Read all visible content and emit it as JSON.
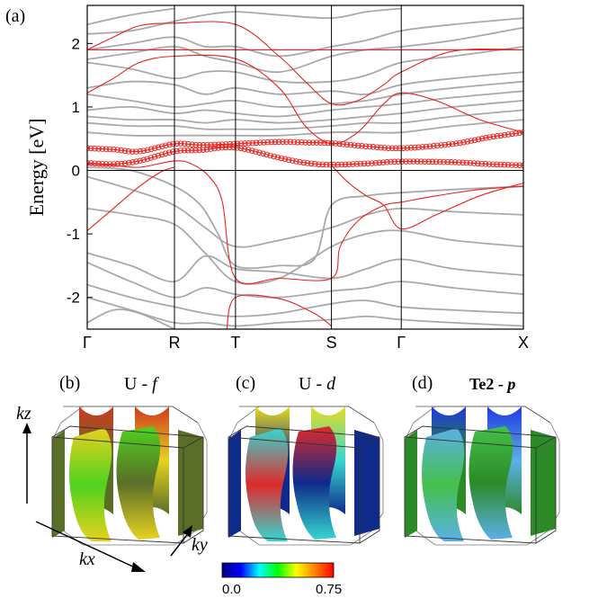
{
  "panel_labels": {
    "a": "(a)",
    "b": "(b)",
    "c": "(c)",
    "d": "(d)"
  },
  "chart_data": {
    "type": "line",
    "title": "",
    "ylabel": "Energy [eV]",
    "xlabel": "",
    "ylim": [
      -2.5,
      2.6
    ],
    "xlim": [
      0,
      5
    ],
    "k_points": [
      {
        "label": "Γ",
        "x": 0
      },
      {
        "label": "R",
        "x": 1
      },
      {
        "label": "T",
        "x": 1.7
      },
      {
        "label": "S",
        "x": 2.8
      },
      {
        "label": "Γ",
        "x": 3.6
      },
      {
        "label": "X",
        "x": 5
      }
    ],
    "yticks": [
      {
        "label": "2",
        "y": 2
      },
      {
        "label": "1",
        "y": 1
      },
      {
        "label": "0",
        "y": 0
      },
      {
        "label": "-1",
        "y": -1
      },
      {
        "label": "-2",
        "y": -2
      }
    ],
    "fermi_level": 0,
    "colors": {
      "highlight": "#e8221e",
      "other": "#a9a9a9",
      "axes": "#000000"
    },
    "gray_bands": [
      [
        [
          0,
          2.3
        ],
        [
          0.5,
          2.45
        ],
        [
          1,
          2.55
        ]
      ],
      [
        [
          0,
          2.15
        ],
        [
          0.5,
          2.2
        ],
        [
          1,
          2.35
        ],
        [
          1.35,
          2.45
        ],
        [
          1.7,
          2.5
        ],
        [
          2.2,
          2.45
        ],
        [
          2.8,
          2.4
        ],
        [
          3.2,
          2.5
        ],
        [
          3.6,
          2.55
        ]
      ],
      [
        [
          0,
          1.9
        ],
        [
          0.5,
          2.0
        ],
        [
          1,
          2.1
        ],
        [
          1.35,
          1.95
        ],
        [
          1.7,
          1.95
        ],
        [
          2.2,
          1.8
        ],
        [
          2.8,
          1.95
        ],
        [
          3.2,
          2.05
        ],
        [
          3.6,
          2.2
        ],
        [
          4.2,
          2.3
        ],
        [
          5,
          2.4
        ]
      ],
      [
        [
          0,
          1.75
        ],
        [
          0.5,
          1.85
        ],
        [
          1,
          1.95
        ],
        [
          1.35,
          1.8
        ],
        [
          1.7,
          1.7
        ],
        [
          2.2,
          1.55
        ],
        [
          2.8,
          1.8
        ],
        [
          3.2,
          1.9
        ],
        [
          3.6,
          1.95
        ],
        [
          4.2,
          2.05
        ],
        [
          5,
          2.25
        ]
      ],
      [
        [
          0,
          1.7
        ],
        [
          0.5,
          1.6
        ],
        [
          1,
          1.45
        ],
        [
          1.35,
          1.55
        ],
        [
          1.7,
          1.55
        ],
        [
          2.2,
          1.4
        ],
        [
          2.8,
          1.4
        ],
        [
          3.2,
          1.5
        ],
        [
          3.6,
          1.7
        ],
        [
          4.2,
          1.8
        ],
        [
          5,
          1.95
        ]
      ],
      [
        [
          0,
          1.3
        ],
        [
          0.5,
          1.4
        ],
        [
          1,
          1.35
        ],
        [
          1.35,
          1.2
        ],
        [
          1.7,
          1.3
        ],
        [
          2.2,
          1.2
        ],
        [
          2.8,
          1.25
        ],
        [
          3.2,
          1.2
        ],
        [
          3.6,
          1.35
        ],
        [
          4.2,
          1.45
        ],
        [
          5,
          1.55
        ]
      ],
      [
        [
          0,
          1.2
        ],
        [
          0.5,
          1.1
        ],
        [
          1,
          1.0
        ],
        [
          1.35,
          1.05
        ],
        [
          1.7,
          1.1
        ],
        [
          2.2,
          1.0
        ],
        [
          2.8,
          1.05
        ],
        [
          3.2,
          1.1
        ],
        [
          3.6,
          1.2
        ],
        [
          4.2,
          1.3
        ],
        [
          5,
          1.4
        ]
      ],
      [
        [
          0,
          0.95
        ],
        [
          0.5,
          1.0
        ],
        [
          1,
          0.9
        ],
        [
          1.35,
          0.95
        ],
        [
          1.7,
          0.9
        ],
        [
          2.2,
          0.85
        ],
        [
          2.8,
          0.95
        ],
        [
          3.2,
          1.0
        ],
        [
          3.6,
          1.05
        ],
        [
          4.2,
          1.15
        ],
        [
          5,
          1.25
        ]
      ],
      [
        [
          0,
          0.85
        ],
        [
          0.5,
          0.8
        ],
        [
          1,
          0.8
        ],
        [
          1.35,
          0.75
        ],
        [
          1.7,
          0.8
        ],
        [
          2.2,
          0.75
        ],
        [
          2.8,
          0.8
        ],
        [
          3.2,
          0.85
        ],
        [
          3.6,
          0.9
        ],
        [
          4.2,
          1.0
        ],
        [
          5,
          1.1
        ]
      ],
      [
        [
          0,
          0.75
        ],
        [
          0.5,
          0.7
        ],
        [
          1,
          0.7
        ],
        [
          1.35,
          0.65
        ],
        [
          1.7,
          0.65
        ],
        [
          2.2,
          0.65
        ],
        [
          2.8,
          0.7
        ],
        [
          3.2,
          0.75
        ],
        [
          3.6,
          0.75
        ],
        [
          4.2,
          0.85
        ],
        [
          5,
          0.95
        ]
      ],
      [
        [
          0,
          0.6
        ],
        [
          0.5,
          0.55
        ],
        [
          1,
          0.55
        ],
        [
          1.35,
          0.55
        ],
        [
          1.7,
          0.55
        ],
        [
          2.2,
          0.55
        ],
        [
          2.8,
          0.6
        ],
        [
          3.2,
          0.6
        ],
        [
          3.6,
          0.6
        ],
        [
          4.2,
          0.7
        ],
        [
          5,
          0.8
        ]
      ],
      [
        [
          0,
          0.05
        ],
        [
          0.5,
          0.0
        ],
        [
          1,
          -0.25
        ],
        [
          1.3,
          -0.55
        ],
        [
          1.5,
          -1.0
        ],
        [
          1.7,
          -1.5
        ],
        [
          2.2,
          -1.5
        ],
        [
          2.6,
          -1.4
        ],
        [
          2.8,
          -0.55
        ],
        [
          3.2,
          -0.4
        ],
        [
          3.6,
          -0.35
        ],
        [
          4.2,
          -0.3
        ],
        [
          5,
          -0.25
        ]
      ],
      [
        [
          0,
          -0.1
        ],
        [
          0.5,
          -0.3
        ],
        [
          1,
          -0.55
        ],
        [
          1.35,
          -0.9
        ],
        [
          1.7,
          -1.2
        ],
        [
          2.2,
          -1.1
        ],
        [
          2.8,
          -0.9
        ],
        [
          3.2,
          -0.7
        ],
        [
          3.6,
          -0.6
        ],
        [
          4.2,
          -0.65
        ],
        [
          5,
          -0.7
        ]
      ],
      [
        [
          0,
          -0.6
        ],
        [
          0.5,
          -0.7
        ],
        [
          1,
          -0.85
        ],
        [
          1.35,
          -1.3
        ],
        [
          1.7,
          -1.75
        ],
        [
          2.2,
          -1.7
        ],
        [
          2.8,
          -1.2
        ],
        [
          3.2,
          -1.0
        ],
        [
          3.6,
          -0.95
        ],
        [
          4.2,
          -1.1
        ],
        [
          5,
          -1.2
        ]
      ],
      [
        [
          0,
          -1.3
        ],
        [
          0.5,
          -1.5
        ],
        [
          1,
          -1.75
        ],
        [
          1.35,
          -1.35
        ],
        [
          1.7,
          -1.55
        ],
        [
          2.2,
          -1.6
        ],
        [
          2.8,
          -1.7
        ],
        [
          3.2,
          -1.55
        ],
        [
          3.6,
          -1.4
        ],
        [
          4.2,
          -1.55
        ],
        [
          5,
          -1.65
        ]
      ],
      [
        [
          0,
          -1.45
        ],
        [
          0.5,
          -1.75
        ],
        [
          1,
          -2.0
        ],
        [
          1.35,
          -1.85
        ],
        [
          1.7,
          -1.95
        ],
        [
          2.2,
          -2.0
        ],
        [
          2.8,
          -1.9
        ],
        [
          3.2,
          -1.85
        ],
        [
          3.6,
          -1.75
        ],
        [
          4.2,
          -1.85
        ],
        [
          5,
          -1.95
        ]
      ],
      [
        [
          0,
          -1.8
        ],
        [
          0.5,
          -2.0
        ],
        [
          1,
          -2.15
        ],
        [
          1.35,
          -2.25
        ],
        [
          1.7,
          -2.3
        ],
        [
          2.2,
          -2.25
        ],
        [
          2.8,
          -2.1
        ],
        [
          3.2,
          -2.05
        ],
        [
          3.6,
          -2.15
        ],
        [
          4.2,
          -2.2
        ],
        [
          5,
          -2.25
        ]
      ],
      [
        [
          0,
          -2.0
        ],
        [
          0.5,
          -2.2
        ],
        [
          1,
          -2.4
        ],
        [
          1.35,
          -2.4
        ],
        [
          1.7,
          -2.45
        ],
        [
          2.2,
          -2.4
        ],
        [
          2.8,
          -2.35
        ],
        [
          3.2,
          -2.3
        ],
        [
          3.6,
          -2.35
        ],
        [
          4.2,
          -2.4
        ],
        [
          5,
          -2.45
        ]
      ],
      [
        [
          0,
          -2.4
        ],
        [
          0.3,
          -2.2
        ],
        [
          0.6,
          -2.25
        ],
        [
          1,
          -2.5
        ]
      ]
    ],
    "red_bands": [
      {
        "points": [
          [
            0,
            1.9
          ],
          [
            1,
            1.9
          ],
          [
            1.7,
            1.9
          ],
          [
            2.8,
            1.9
          ],
          [
            3.6,
            1.9
          ],
          [
            5,
            1.9
          ]
        ],
        "markers": false
      },
      {
        "points": [
          [
            0,
            1.9
          ],
          [
            0.3,
            2.1
          ],
          [
            0.6,
            2.28
          ],
          [
            1,
            2.32
          ],
          [
            1.7,
            2.3
          ],
          [
            2.2,
            1.8
          ],
          [
            2.5,
            1.4
          ],
          [
            2.8,
            1.05
          ],
          [
            3.1,
            1.1
          ],
          [
            3.4,
            1.35
          ],
          [
            3.6,
            1.55
          ],
          [
            4.2,
            1.88
          ],
          [
            5,
            1.9
          ]
        ],
        "markers": false
      },
      {
        "points": [
          [
            0,
            1.22
          ],
          [
            0.3,
            1.45
          ],
          [
            0.6,
            1.7
          ],
          [
            1,
            1.8
          ],
          [
            1.7,
            1.76
          ],
          [
            2.2,
            1.3
          ],
          [
            2.5,
            0.7
          ],
          [
            2.8,
            0.42
          ],
          [
            3.1,
            0.6
          ],
          [
            3.4,
            1.05
          ],
          [
            3.6,
            1.22
          ],
          [
            4.0,
            1.1
          ],
          [
            4.5,
            0.8
          ],
          [
            5,
            0.6
          ]
        ],
        "markers": false
      },
      {
        "points": [
          [
            0,
            0.35
          ],
          [
            0.3,
            0.33
          ],
          [
            0.6,
            0.3
          ],
          [
            1,
            0.42
          ],
          [
            1.3,
            0.4
          ],
          [
            1.7,
            0.42
          ],
          [
            2.2,
            0.45
          ],
          [
            2.5,
            0.44
          ],
          [
            2.8,
            0.43
          ],
          [
            3.2,
            0.38
          ],
          [
            3.6,
            0.35
          ],
          [
            4.2,
            0.42
          ],
          [
            4.6,
            0.52
          ],
          [
            5,
            0.6
          ]
        ],
        "markers": true
      },
      {
        "points": [
          [
            0,
            0.12
          ],
          [
            0.3,
            0.1
          ],
          [
            0.6,
            0.15
          ],
          [
            1,
            0.3
          ],
          [
            1.3,
            0.32
          ],
          [
            1.7,
            0.36
          ],
          [
            2.2,
            0.2
          ],
          [
            2.5,
            0.12
          ],
          [
            2.8,
            0.09
          ],
          [
            3.2,
            0.11
          ],
          [
            3.6,
            0.14
          ],
          [
            4.2,
            0.13
          ],
          [
            4.6,
            0.1
          ],
          [
            5,
            0.08
          ]
        ],
        "markers": true
      },
      {
        "points": [
          [
            0,
            0.1
          ],
          [
            0.3,
            0.08
          ],
          [
            0.6,
            0.05
          ],
          [
            1,
            0.15
          ],
          [
            1.2,
            0.1
          ],
          [
            1.4,
            -0.1
          ],
          [
            1.55,
            -0.5
          ],
          [
            1.7,
            -1.7
          ],
          [
            2.2,
            -1.7
          ],
          [
            2.8,
            -1.7
          ],
          [
            2.9,
            -1.2
          ],
          [
            3.1,
            -0.8
          ],
          [
            3.4,
            -0.55
          ],
          [
            3.6,
            -0.5
          ],
          [
            4.0,
            -0.4
          ],
          [
            4.5,
            -0.3
          ],
          [
            5,
            -0.25
          ]
        ],
        "markers": false
      },
      {
        "points": [
          [
            0,
            -0.95
          ],
          [
            0.3,
            -0.6
          ],
          [
            0.6,
            -0.25
          ],
          [
            0.85,
            -0.02
          ],
          [
            1,
            0.05
          ]
        ],
        "markers": false
      },
      {
        "points": [
          [
            2.8,
            0.08
          ],
          [
            3.0,
            -0.2
          ],
          [
            3.2,
            -0.4
          ],
          [
            3.4,
            -0.55
          ],
          [
            3.6,
            -0.92
          ],
          [
            4.0,
            -0.7
          ],
          [
            4.5,
            -0.4
          ],
          [
            5,
            -0.2
          ]
        ],
        "markers": false
      },
      {
        "points": [
          [
            1.6,
            -2.5
          ],
          [
            1.7,
            -2.0
          ],
          [
            2.2,
            -2.02
          ],
          [
            2.6,
            -2.25
          ],
          [
            2.8,
            -2.45
          ]
        ],
        "markers": false
      }
    ]
  },
  "fermi_panels": [
    {
      "id": "b",
      "title_species": "U",
      "title_sep": " - ",
      "title_orbital": "f",
      "base_color": "#5a6e28",
      "accent_colors": [
        "#d03a1e",
        "#e7d21e",
        "#4fd21f"
      ]
    },
    {
      "id": "c",
      "title_species": "U",
      "title_sep": " - ",
      "title_orbital": "d",
      "base_color": "#0e2a8a",
      "accent_colors": [
        "#e7dc1f",
        "#36d7d0",
        "#e02a2a"
      ]
    },
    {
      "id": "d",
      "title_species": "Te2",
      "title_sep": " - ",
      "title_orbital": "p",
      "base_color": "#2c8a28",
      "accent_colors": [
        "#1f3ae0",
        "#5bb0e8",
        "#44c04a"
      ]
    }
  ],
  "axes_labels": {
    "kz": "kz",
    "kx": "kx",
    "ky": "ky"
  },
  "colorbar": {
    "min_label": "0.0",
    "max_label": "0.75",
    "stops": [
      "#00007f",
      "#0000ff",
      "#00ffff",
      "#00ff00",
      "#ffff00",
      "#ff7f00",
      "#ff0000"
    ]
  }
}
